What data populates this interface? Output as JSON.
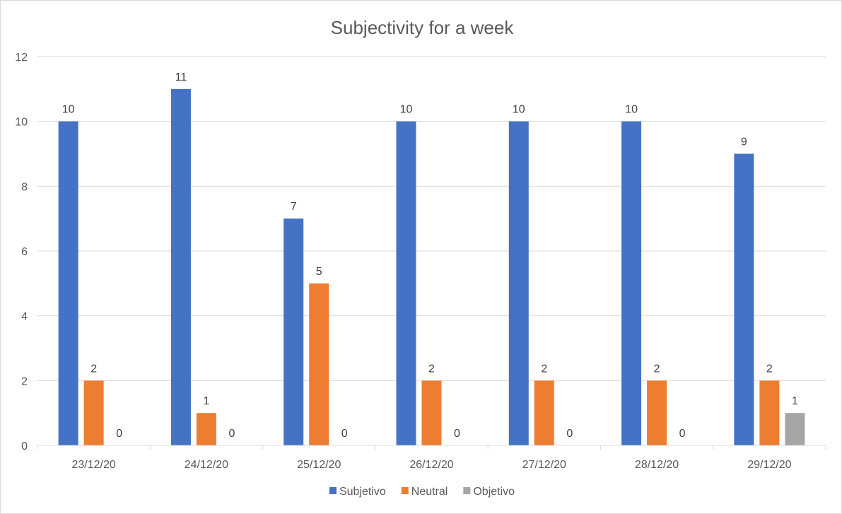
{
  "chart_data": {
    "type": "bar",
    "title": "Subjectivity for a week",
    "xlabel": "",
    "ylabel": "",
    "ylim": [
      0,
      12
    ],
    "yticks": [
      0,
      2,
      4,
      6,
      8,
      10,
      12
    ],
    "grid": true,
    "legend_position": "bottom",
    "categories": [
      "23/12/20",
      "24/12/20",
      "25/12/20",
      "26/12/20",
      "27/12/20",
      "28/12/20",
      "29/12/20"
    ],
    "series": [
      {
        "name": "Subjetivo",
        "color": "#4472c4",
        "values": [
          10,
          11,
          7,
          10,
          10,
          10,
          9
        ]
      },
      {
        "name": "Neutral",
        "color": "#ed7d31",
        "values": [
          2,
          1,
          5,
          2,
          2,
          2,
          2
        ]
      },
      {
        "name": "Objetivo",
        "color": "#a5a5a5",
        "values": [
          0,
          0,
          0,
          0,
          0,
          0,
          1
        ]
      }
    ],
    "data_labels": true
  }
}
